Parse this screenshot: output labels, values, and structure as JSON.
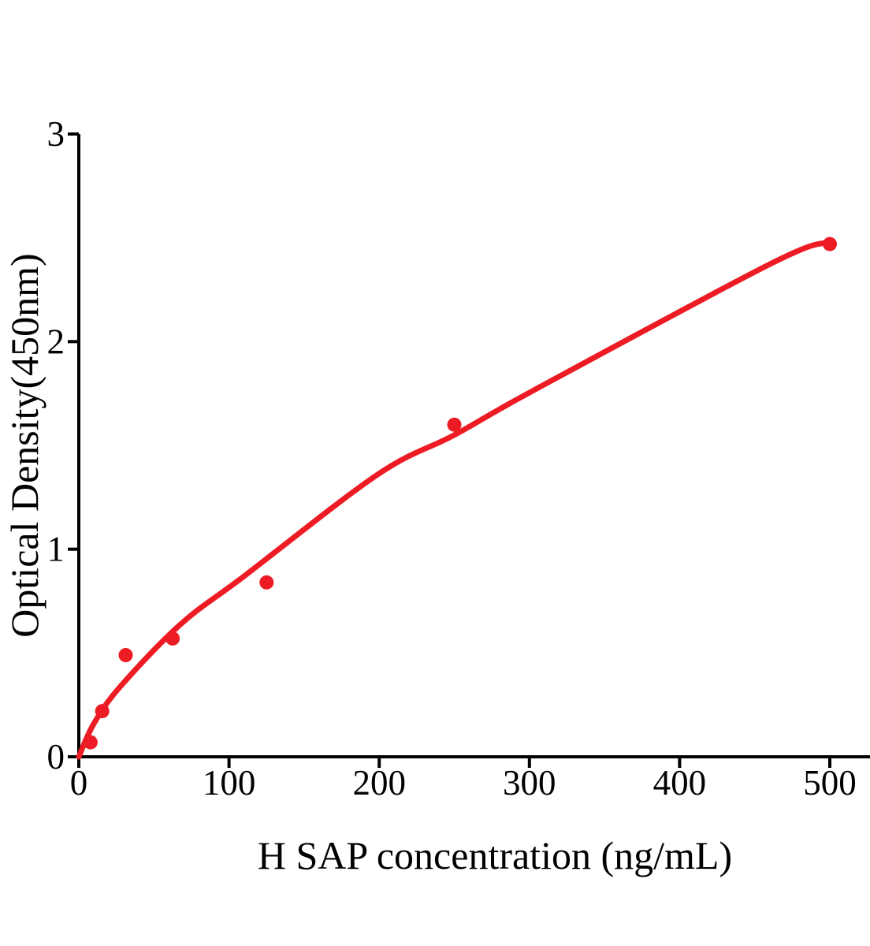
{
  "figure": {
    "background": "#ffffff"
  },
  "chart_data": {
    "type": "scatter",
    "title": "",
    "xlabel": "H SAP concentration (ng/mL)",
    "ylabel": "Optical Density(450nm)",
    "x_ticks": [
      "0",
      "100",
      "200",
      "300",
      "400",
      "500"
    ],
    "y_ticks": [
      "0",
      "1",
      "2",
      "3"
    ],
    "x_tick_values": [
      0,
      100,
      200,
      300,
      400,
      500
    ],
    "y_tick_values": [
      0,
      1,
      2,
      3
    ],
    "xlim": [
      0,
      527
    ],
    "ylim": [
      0,
      3
    ],
    "grid": false,
    "legend_position": "none",
    "point_color": "#ED1C24",
    "line_color": "#ED1C24",
    "axis_color": "#000000",
    "series": [
      {
        "name": "standard-points",
        "type": "scatter",
        "x": [
          7.8,
          15.6,
          31.2,
          62.5,
          125,
          250,
          500
        ],
        "y": [
          0.07,
          0.22,
          0.49,
          0.57,
          0.84,
          1.6,
          2.47
        ]
      },
      {
        "name": "fitted-curve",
        "type": "line",
        "x": [
          0,
          10,
          27.8,
          68,
          110,
          199,
          250,
          304,
          462,
          500
        ],
        "y": [
          0,
          0.16,
          0.34,
          0.64,
          0.87,
          1.36,
          1.55,
          1.77,
          2.38,
          2.48
        ]
      }
    ]
  }
}
